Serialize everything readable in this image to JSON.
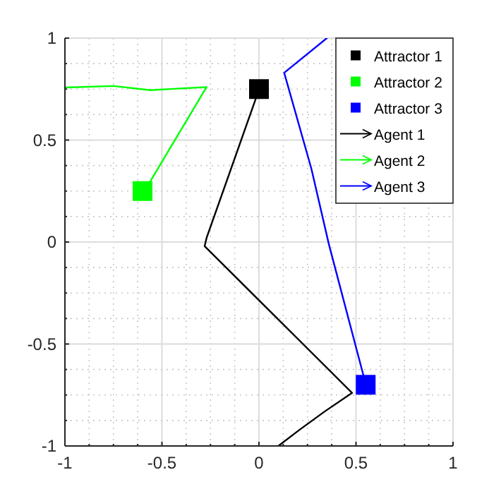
{
  "chart_data": {
    "type": "line",
    "xlim": [
      -1,
      1
    ],
    "ylim": [
      -1,
      1
    ],
    "xticks": [
      -1,
      {
        "value": -0.875,
        "label": null
      },
      {
        "value": -0.75,
        "label": null
      },
      {
        "value": -0.625,
        "label": null
      },
      -0.5,
      {
        "value": -0.375,
        "label": null
      },
      {
        "value": -0.25,
        "label": null
      },
      {
        "value": -0.125,
        "label": null
      },
      0,
      {
        "value": 0.125,
        "label": null
      },
      {
        "value": 0.25,
        "label": null
      },
      {
        "value": 0.375,
        "label": null
      },
      0.5,
      {
        "value": 0.625,
        "label": null
      },
      {
        "value": 0.75,
        "label": null
      },
      {
        "value": 0.875,
        "label": null
      },
      1
    ],
    "yticks": [
      -1,
      {
        "value": -0.875,
        "label": null
      },
      {
        "value": -0.75,
        "label": null
      },
      {
        "value": -0.625,
        "label": null
      },
      -0.5,
      {
        "value": -0.375,
        "label": null
      },
      {
        "value": -0.25,
        "label": null
      },
      {
        "value": -0.125,
        "label": null
      },
      0,
      {
        "value": 0.125,
        "label": null
      },
      {
        "value": 0.25,
        "label": null
      },
      {
        "value": 0.375,
        "label": null
      },
      0.5,
      {
        "value": 0.625,
        "label": null
      },
      {
        "value": 0.75,
        "label": null
      },
      {
        "value": 0.875,
        "label": null
      },
      1
    ],
    "grid": true,
    "legend": "top right",
    "series": [
      {
        "name": "Attractor 1",
        "type": "scatter",
        "marker": "square",
        "color": "#000000",
        "x": [
          0
        ],
        "values": [
          0.75
        ]
      },
      {
        "name": "Attractor 2",
        "type": "scatter",
        "marker": "square",
        "color": "#00ff00",
        "x": [
          -0.6
        ],
        "values": [
          0.25
        ]
      },
      {
        "name": "Attractor 3",
        "type": "scatter",
        "marker": "square",
        "color": "#0000ff",
        "x": [
          0.55
        ],
        "values": [
          -0.7
        ]
      },
      {
        "name": "Agent 1",
        "marker": "none",
        "color": "#000000",
        "x": [
          0.1,
          0.21,
          0.34,
          0.48,
          -0.28,
          -0.27,
          -0.01,
          0
        ],
        "values": [
          -1,
          -0.92,
          -0.83,
          -0.74,
          -0.02,
          0.02,
          0.72,
          0.75
        ]
      },
      {
        "name": "Agent 2",
        "marker": "none",
        "color": "#00ff00",
        "x": [
          -1,
          -0.75,
          -0.56,
          -0.27,
          -0.59
        ],
        "values": [
          0.758,
          0.765,
          0.745,
          0.76,
          0.25
        ]
      },
      {
        "name": "Agent 3",
        "marker": "none",
        "color": "#0000ff",
        "x": [
          0.35,
          0.13,
          0.27,
          0.36,
          0.54
        ],
        "values": [
          1,
          0.83,
          0.36,
          -0.01,
          -0.66
        ]
      }
    ]
  }
}
